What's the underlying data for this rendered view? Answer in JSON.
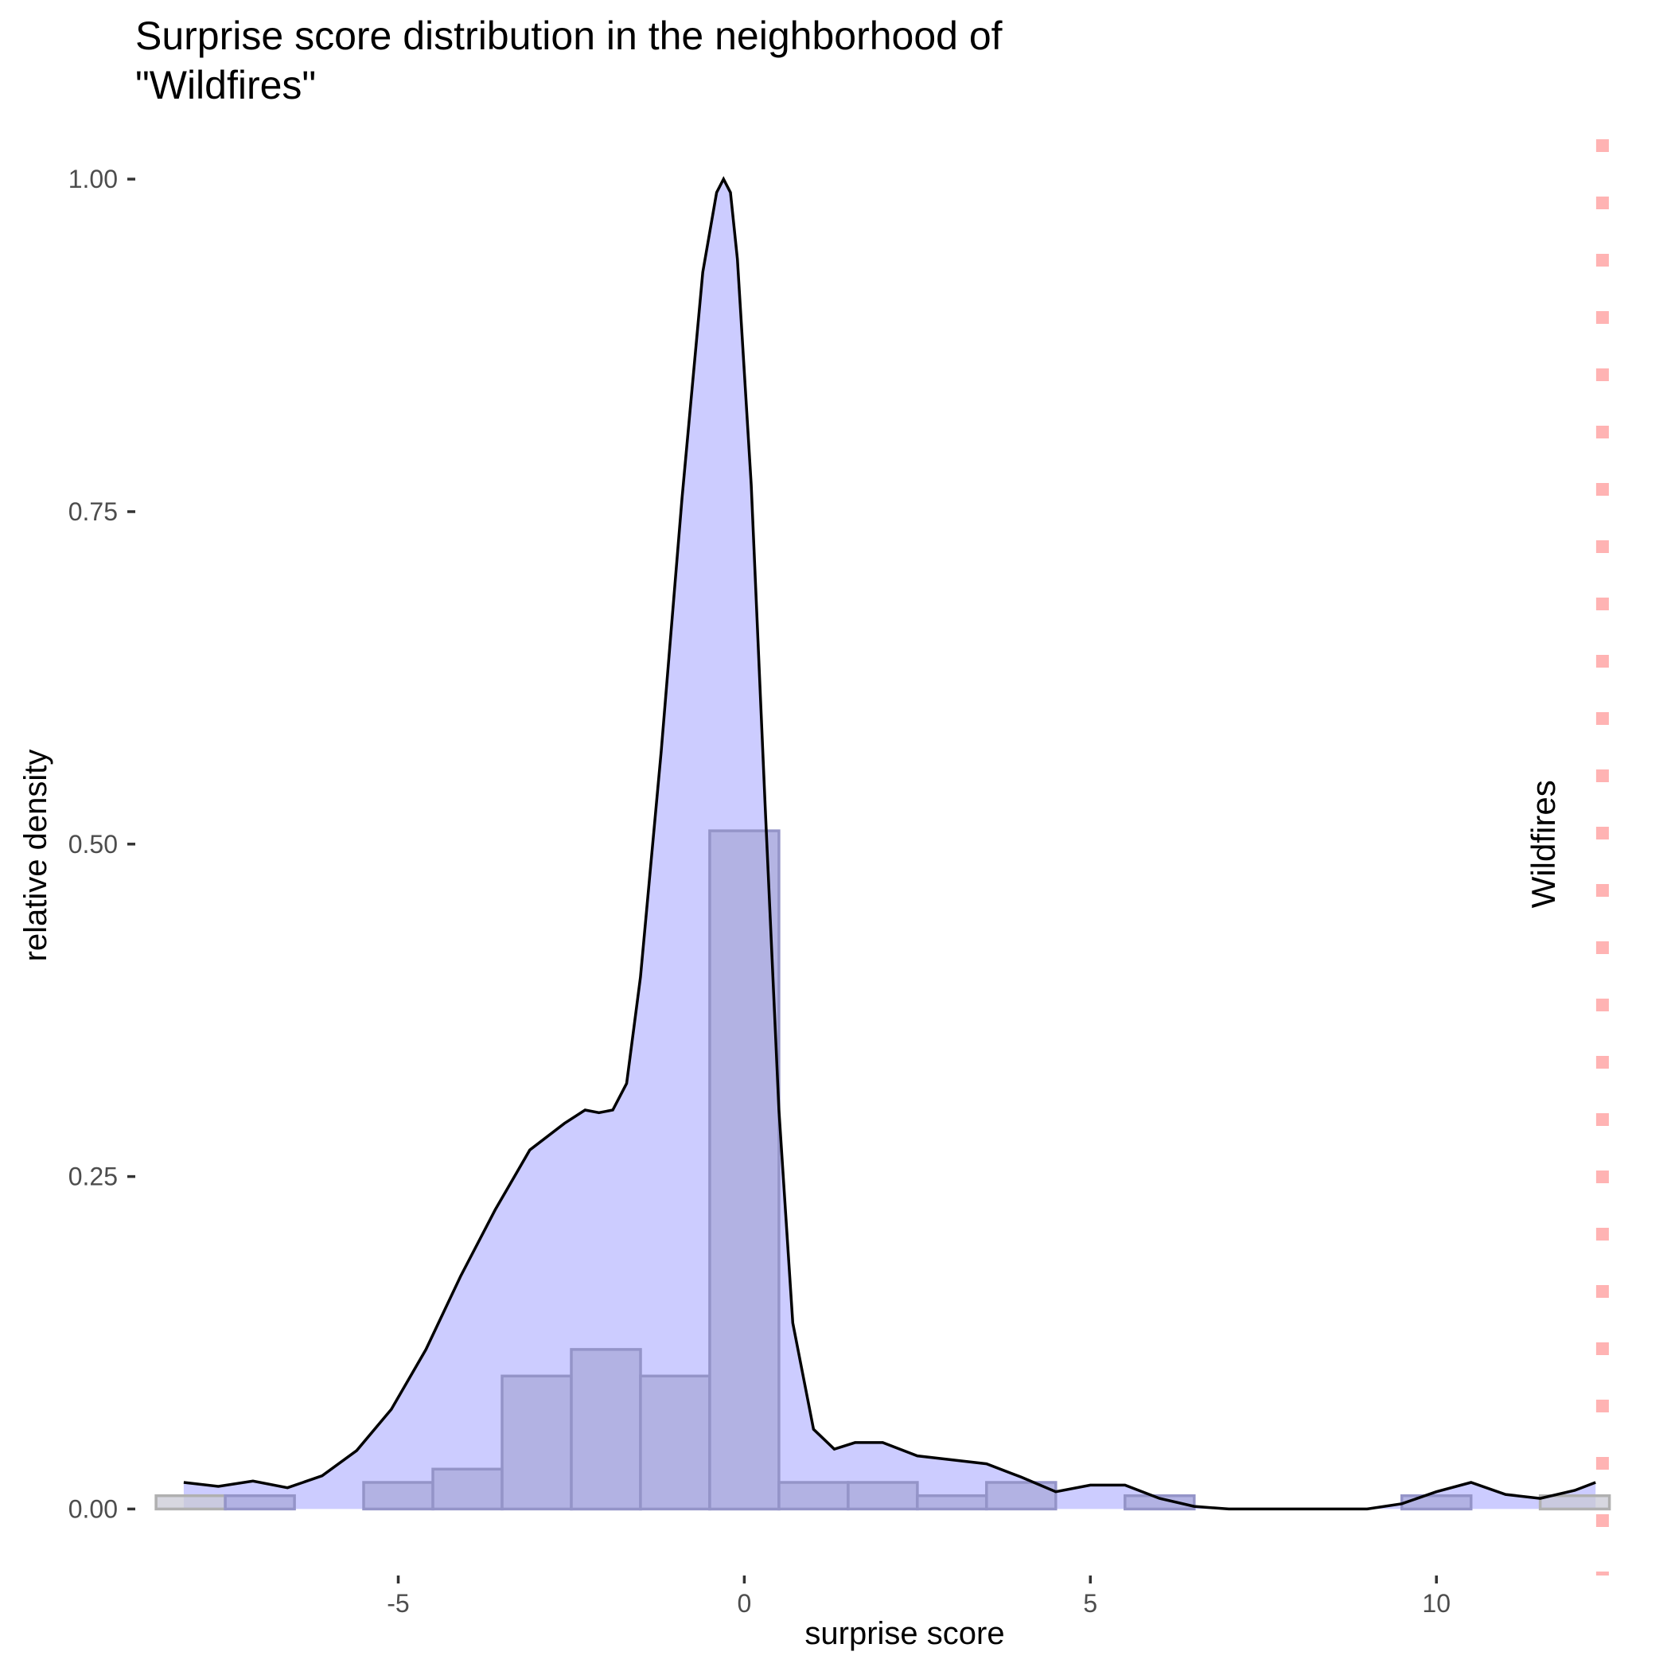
{
  "chart_data": {
    "type": "histogram+density",
    "title_lines": [
      "Surprise score distribution in the neighborhood of",
      "\"Wildfires\""
    ],
    "xlabel": "surprise score",
    "ylabel": "relative density",
    "xlim": [
      -8.8,
      12.7
    ],
    "ylim": [
      -0.05,
      1.03
    ],
    "x_ticks": [
      -5,
      0,
      5,
      10
    ],
    "x_tick_labels": [
      "-5",
      "0",
      "5",
      "10"
    ],
    "y_ticks": [
      0,
      0.25,
      0.5,
      0.75,
      1.0
    ],
    "y_tick_labels": [
      "0.00",
      "0.25",
      "0.50",
      "0.75",
      "1.00"
    ],
    "grid": false,
    "histogram": {
      "bins": [
        {
          "x0": -8.5,
          "x1": -7.5,
          "value": 0.01,
          "outside": true
        },
        {
          "x0": -7.5,
          "x1": -6.5,
          "value": 0.01
        },
        {
          "x0": -5.5,
          "x1": -4.5,
          "value": 0.02
        },
        {
          "x0": -4.5,
          "x1": -3.5,
          "value": 0.03
        },
        {
          "x0": -3.5,
          "x1": -2.5,
          "value": 0.1
        },
        {
          "x0": -2.5,
          "x1": -1.5,
          "value": 0.12
        },
        {
          "x0": -1.5,
          "x1": -0.5,
          "value": 0.1
        },
        {
          "x0": -0.5,
          "x1": 0.5,
          "value": 0.51
        },
        {
          "x0": 0.5,
          "x1": 1.5,
          "value": 0.02
        },
        {
          "x0": 1.5,
          "x1": 2.5,
          "value": 0.02
        },
        {
          "x0": 2.5,
          "x1": 3.5,
          "value": 0.01
        },
        {
          "x0": 3.5,
          "x1": 4.5,
          "value": 0.02
        },
        {
          "x0": 5.5,
          "x1": 6.5,
          "value": 0.01
        },
        {
          "x0": 9.5,
          "x1": 10.5,
          "value": 0.01
        },
        {
          "x0": 11.5,
          "x1": 12.5,
          "value": 0.01,
          "outside": true
        }
      ],
      "fill_color": "#b0b0e2",
      "stroke_color": "#9494c8"
    },
    "density": {
      "x": [
        -8.1,
        -7.6,
        -7.1,
        -6.6,
        -6.1,
        -5.6,
        -5.1,
        -4.6,
        -4.1,
        -3.6,
        -3.1,
        -2.6,
        -2.3,
        -2.1,
        -1.9,
        -1.7,
        -1.5,
        -1.2,
        -0.9,
        -0.6,
        -0.4,
        -0.3,
        -0.2,
        -0.1,
        0.1,
        0.3,
        0.5,
        0.7,
        1.0,
        1.3,
        1.6,
        2.0,
        2.5,
        3.0,
        3.5,
        4.0,
        4.5,
        5.0,
        5.5,
        6.0,
        6.5,
        7.0,
        7.5,
        8.0,
        8.5,
        9.0,
        9.5,
        10.0,
        10.5,
        11.0,
        11.5,
        12.0,
        12.3
      ],
      "y": [
        0.02,
        0.017,
        0.021,
        0.016,
        0.025,
        0.044,
        0.075,
        0.12,
        0.175,
        0.225,
        0.27,
        0.29,
        0.3,
        0.298,
        0.3,
        0.32,
        0.4,
        0.57,
        0.76,
        0.93,
        0.99,
        1.0,
        0.99,
        0.94,
        0.77,
        0.53,
        0.3,
        0.14,
        0.06,
        0.045,
        0.05,
        0.05,
        0.04,
        0.037,
        0.034,
        0.024,
        0.013,
        0.018,
        0.018,
        0.008,
        0.002,
        0.0,
        0.0,
        0.0,
        0.0,
        0.0,
        0.004,
        0.013,
        0.02,
        0.011,
        0.008,
        0.014,
        0.02
      ],
      "fill_color": "#ccccff",
      "line_color": "#000000"
    },
    "reference_line": {
      "x": 12.4,
      "label": "Wildfires",
      "color": "#ffb3b3",
      "style": "dotted"
    }
  }
}
